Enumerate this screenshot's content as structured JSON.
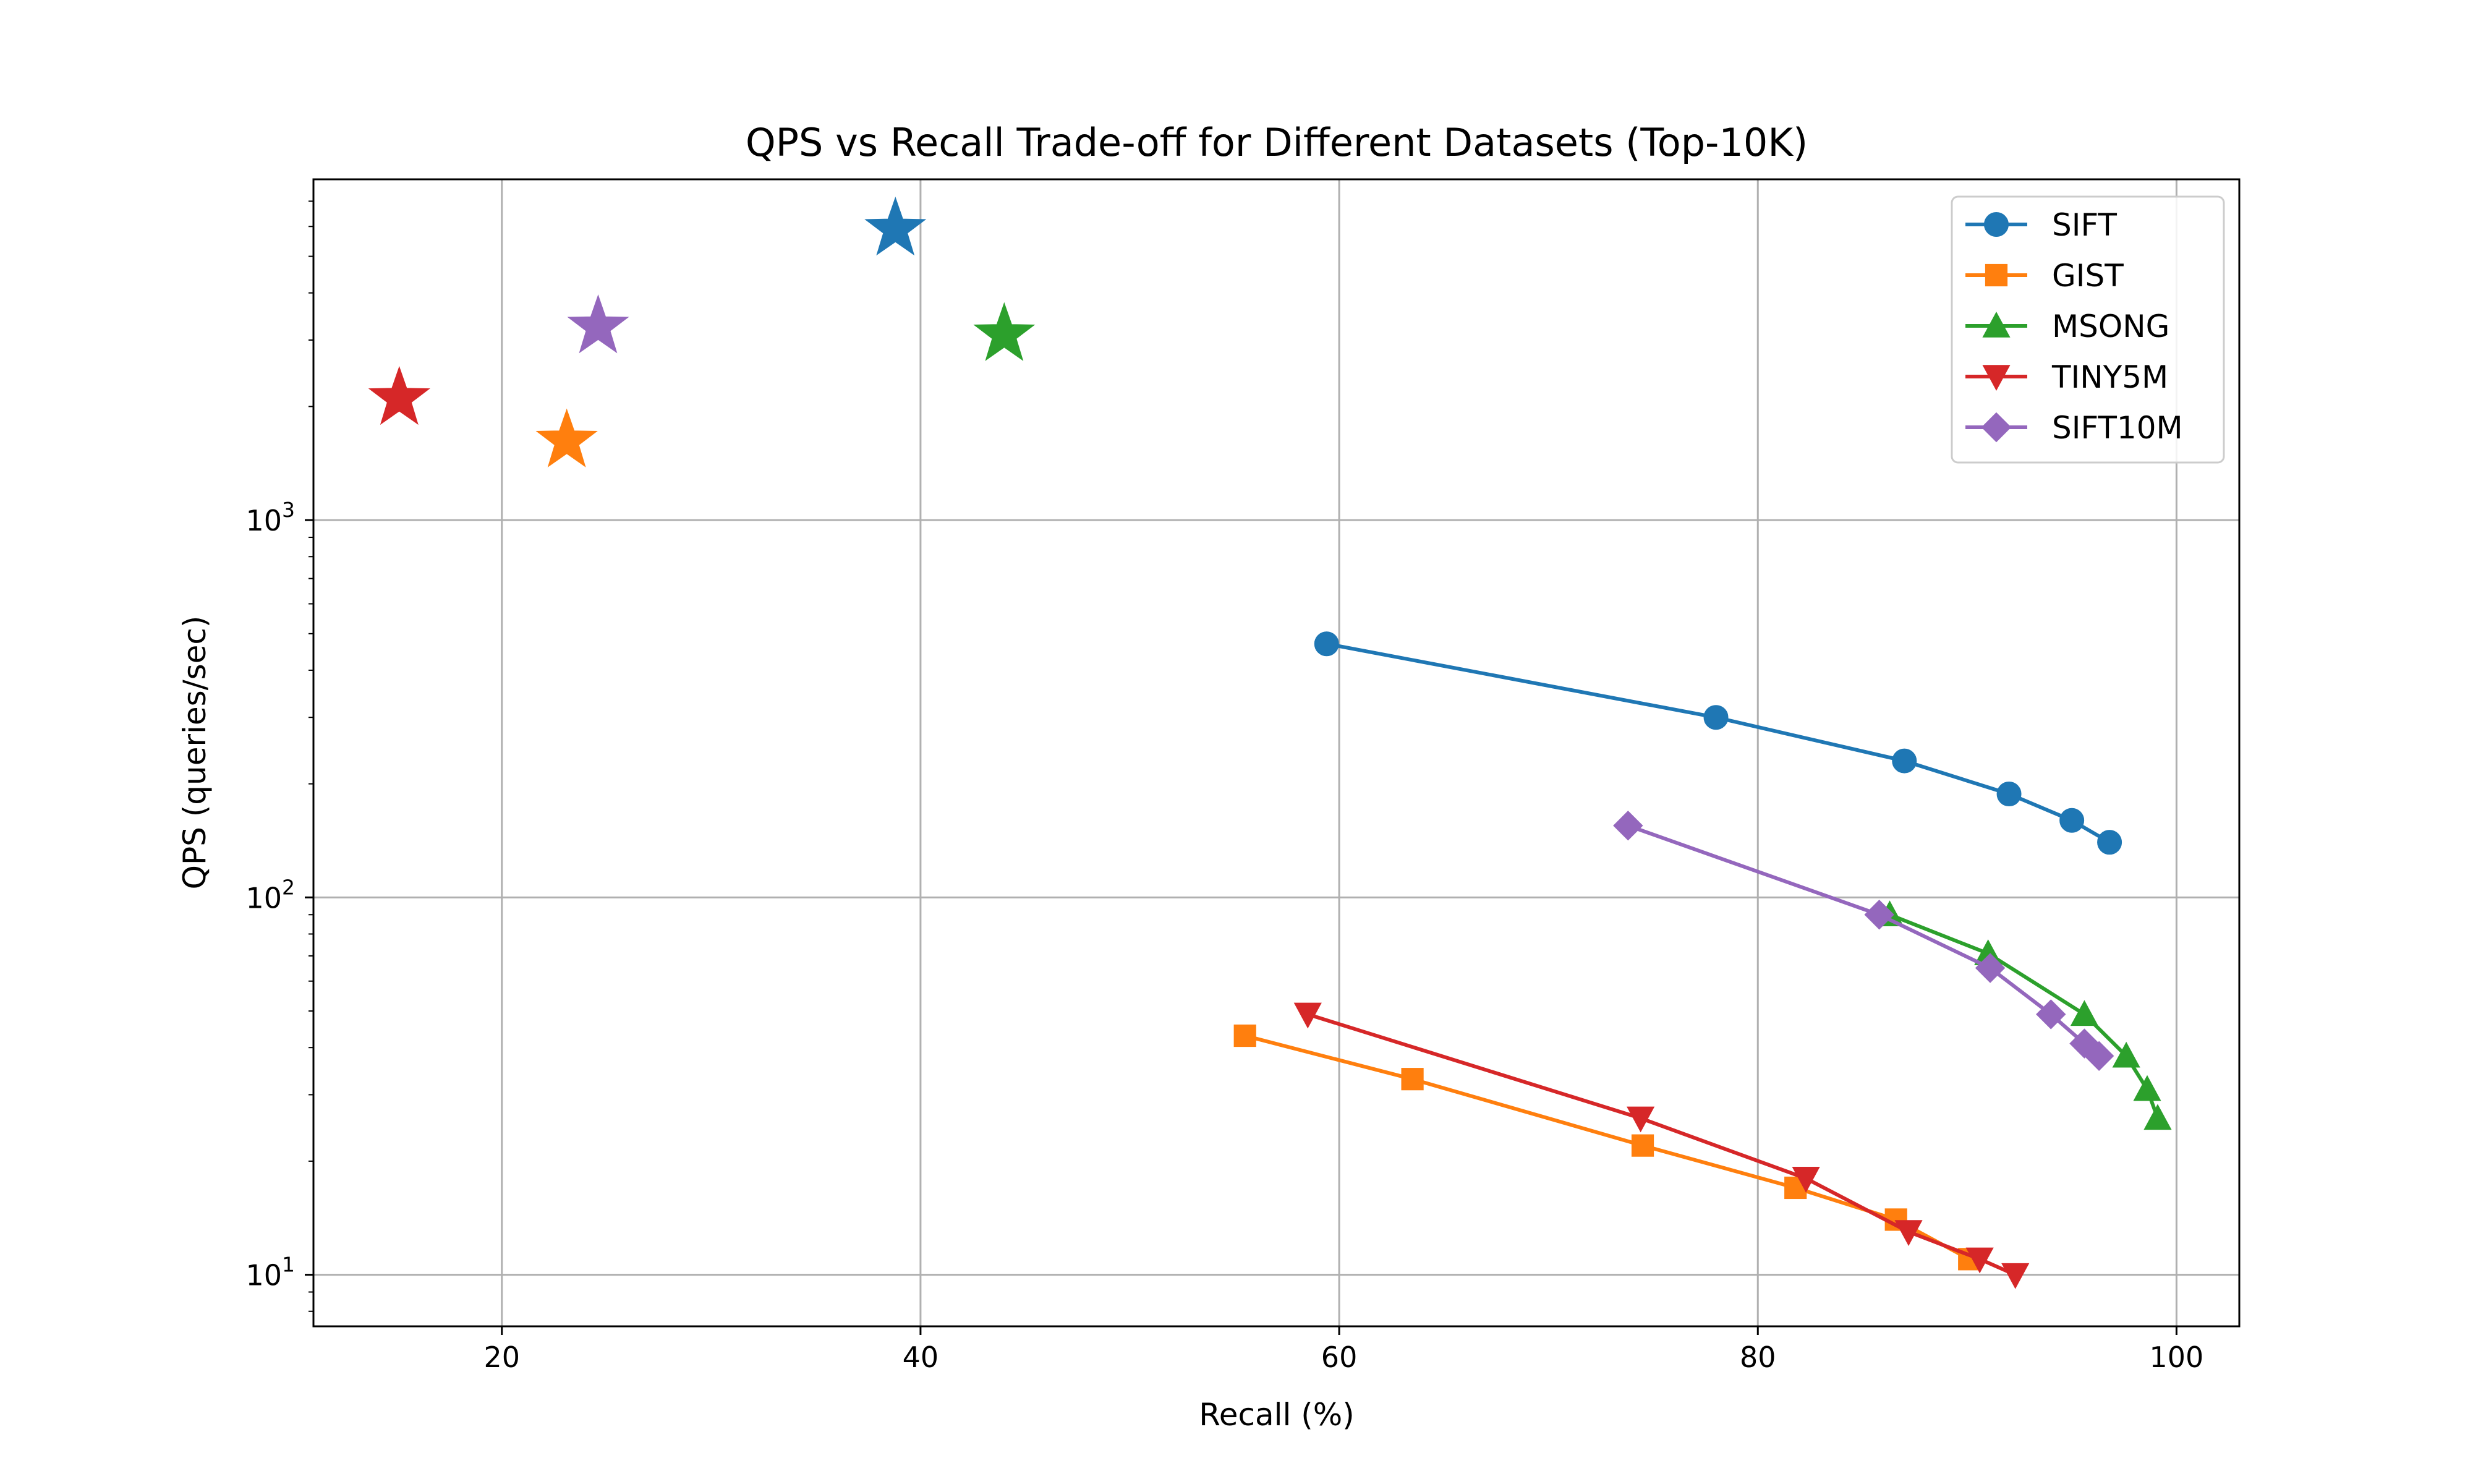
{
  "chart_data": {
    "type": "line",
    "title": "QPS vs Recall Trade-off for Different Datasets (Top-10K)",
    "xlabel": "Recall (%)",
    "ylabel": "QPS (queries/sec)",
    "xlim": [
      11,
      103
    ],
    "ylim": [
      7.3,
      8000
    ],
    "yscale": "log",
    "grid": true,
    "legend_position": "top-right",
    "xticks": [
      {
        "value": 20,
        "label": "20"
      },
      {
        "value": 40,
        "label": "40"
      },
      {
        "value": 60,
        "label": "60"
      },
      {
        "value": 80,
        "label": "80"
      },
      {
        "value": 100,
        "label": "100"
      }
    ],
    "yticks": [
      {
        "value": 10,
        "base": "10",
        "exp": "1"
      },
      {
        "value": 100,
        "base": "10",
        "exp": "2"
      },
      {
        "value": 1000,
        "base": "10",
        "exp": "3"
      }
    ],
    "series": [
      {
        "name": "SIFT",
        "color": "#1f77b4",
        "marker": "circle",
        "x": [
          59.4,
          78.0,
          87.0,
          92.0,
          95.0,
          96.8
        ],
        "y": [
          470,
          300,
          230,
          188,
          160,
          140
        ],
        "star": {
          "x": 38.8,
          "y": 5900
        }
      },
      {
        "name": "GIST",
        "color": "#ff7f0e",
        "marker": "square",
        "x": [
          55.5,
          63.5,
          74.5,
          81.8,
          86.6,
          90.1
        ],
        "y": [
          43,
          33,
          22,
          17,
          14,
          11
        ],
        "star": {
          "x": 23.1,
          "y": 1620
        }
      },
      {
        "name": "MSONG",
        "color": "#2ca02c",
        "marker": "triangle-up",
        "x": [
          86.3,
          91.0,
          95.6,
          97.6,
          98.6,
          99.1
        ],
        "y": [
          90,
          71,
          49,
          38,
          31,
          26
        ],
        "star": {
          "x": 44.0,
          "y": 3100
        }
      },
      {
        "name": "TINY5M",
        "color": "#d62728",
        "marker": "triangle-down",
        "x": [
          58.5,
          74.4,
          82.3,
          87.2,
          90.6,
          92.3
        ],
        "y": [
          49,
          26,
          18,
          13,
          11,
          10
        ],
        "star": {
          "x": 15.1,
          "y": 2100
        }
      },
      {
        "name": "SIFT10M",
        "color": "#9467bd",
        "marker": "diamond",
        "x": [
          73.8,
          85.8,
          91.1,
          94.0,
          95.6,
          96.3
        ],
        "y": [
          155,
          90,
          65,
          49,
          41,
          38
        ],
        "star": {
          "x": 24.6,
          "y": 3250
        }
      }
    ]
  }
}
